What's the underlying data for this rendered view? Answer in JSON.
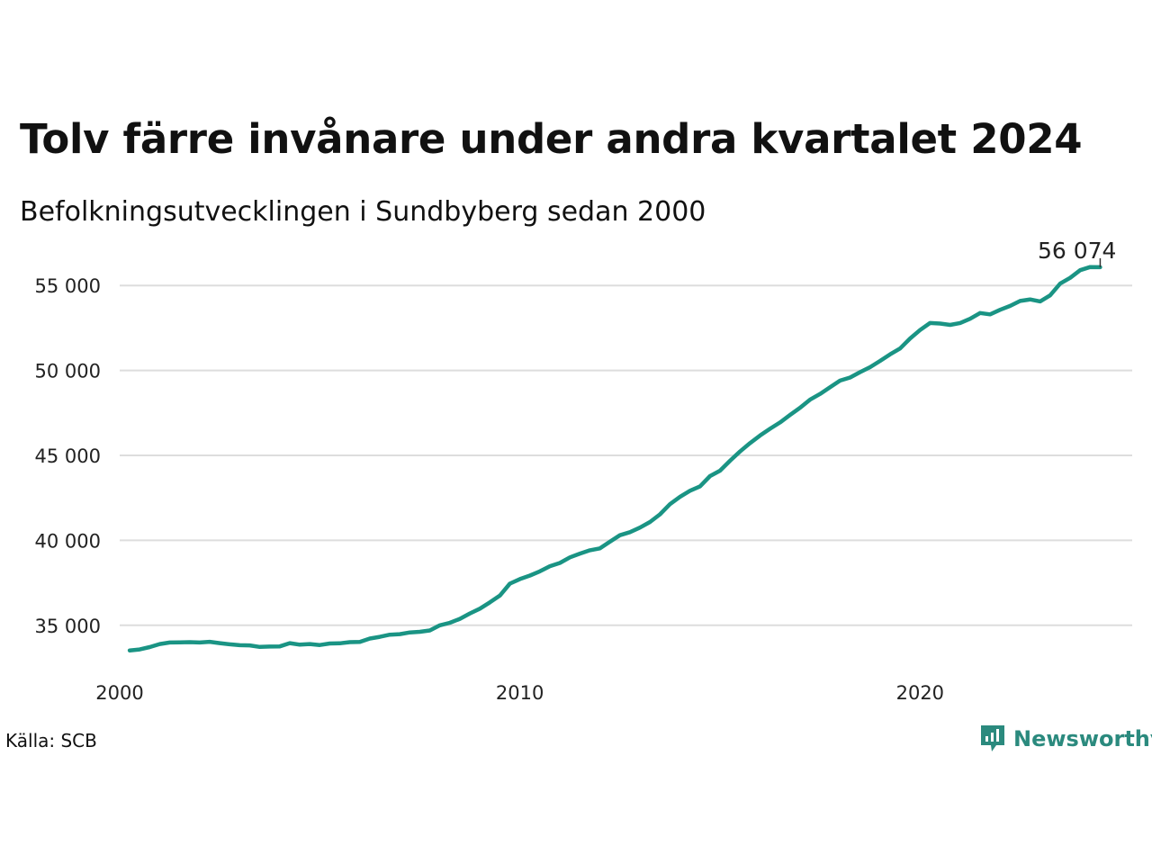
{
  "header": {
    "title": "Tolv färre invånare under andra kvartalet 2024",
    "subtitle": "Befolkningsutvecklingen i Sundbyberg sedan 2000"
  },
  "footer": {
    "source": "Källa: SCB",
    "brand": "Newsworthy",
    "brand_icon": "bar-chart-logo-icon"
  },
  "colors": {
    "line": "#1a9484",
    "grid": "#dddddd",
    "brand": "#2b8a7e"
  },
  "chart_data": {
    "type": "line",
    "xlim": [
      2000,
      2025.3
    ],
    "ylim": [
      32500,
      57500
    ],
    "yticks": [
      35000,
      40000,
      45000,
      50000,
      55000
    ],
    "ytick_labels": [
      "35 000",
      "40 000",
      "45 000",
      "50 000",
      "55 000"
    ],
    "xticks": [
      2000,
      2010,
      2020
    ],
    "xtick_labels": [
      "2000",
      "2010",
      "2020"
    ],
    "grid": true,
    "end_label": "56 074",
    "series": [
      {
        "x": [
          2000.25,
          2000.5,
          2000.75,
          2001.0,
          2001.25,
          2001.5,
          2001.75,
          2002.0,
          2002.25,
          2002.5,
          2002.75,
          2003.0,
          2003.25,
          2003.5,
          2003.75,
          2004.0,
          2004.25,
          2004.5,
          2004.75,
          2005.0,
          2005.25,
          2005.5,
          2005.75,
          2006.0,
          2006.25,
          2006.5,
          2006.75,
          2007.0,
          2007.25,
          2007.5,
          2007.75,
          2008.0,
          2008.25,
          2008.5,
          2008.75,
          2009.0,
          2009.25,
          2009.5,
          2009.75,
          2010.0,
          2010.25,
          2010.5,
          2010.75,
          2011.0,
          2011.25,
          2011.5,
          2011.75,
          2012.0,
          2012.25,
          2012.5,
          2012.75,
          2013.0,
          2013.25,
          2013.5,
          2013.75,
          2014.0,
          2014.25,
          2014.5,
          2014.75,
          2015.0,
          2015.25,
          2015.5,
          2015.75,
          2016.0,
          2016.25,
          2016.5,
          2016.75,
          2017.0,
          2017.25,
          2017.5,
          2017.75,
          2018.0,
          2018.25,
          2018.5,
          2018.75,
          2019.0,
          2019.25,
          2019.5,
          2019.75,
          2020.0,
          2020.25,
          2020.5,
          2020.75,
          2021.0,
          2021.25,
          2021.5,
          2021.75,
          2022.0,
          2022.25,
          2022.5,
          2022.75,
          2023.0,
          2023.25,
          2023.5,
          2023.75,
          2024.0,
          2024.25,
          2024.5
        ],
        "values": [
          33520,
          33580,
          33720,
          33900,
          33990,
          34000,
          34010,
          33990,
          34030,
          33950,
          33880,
          33830,
          33820,
          33730,
          33750,
          33760,
          33950,
          33860,
          33900,
          33840,
          33930,
          33940,
          34010,
          34020,
          34220,
          34320,
          34450,
          34480,
          34580,
          34620,
          34700,
          35000,
          35150,
          35380,
          35700,
          35980,
          36350,
          36750,
          37450,
          37720,
          37930,
          38180,
          38480,
          38670,
          39000,
          39220,
          39420,
          39530,
          39920,
          40300,
          40480,
          40750,
          41080,
          41530,
          42130,
          42560,
          42920,
          43180,
          43780,
          44100,
          44680,
          45230,
          45720,
          46170,
          46570,
          46940,
          47380,
          47800,
          48280,
          48620,
          49010,
          49400,
          49580,
          49900,
          50190,
          50560,
          50950,
          51290,
          51880,
          52380,
          52790,
          52760,
          52680,
          52790,
          53040,
          53380,
          53300,
          53570,
          53800,
          54090,
          54180,
          54060,
          54420,
          55110,
          55450,
          55900,
          56086,
          56074
        ]
      }
    ]
  }
}
